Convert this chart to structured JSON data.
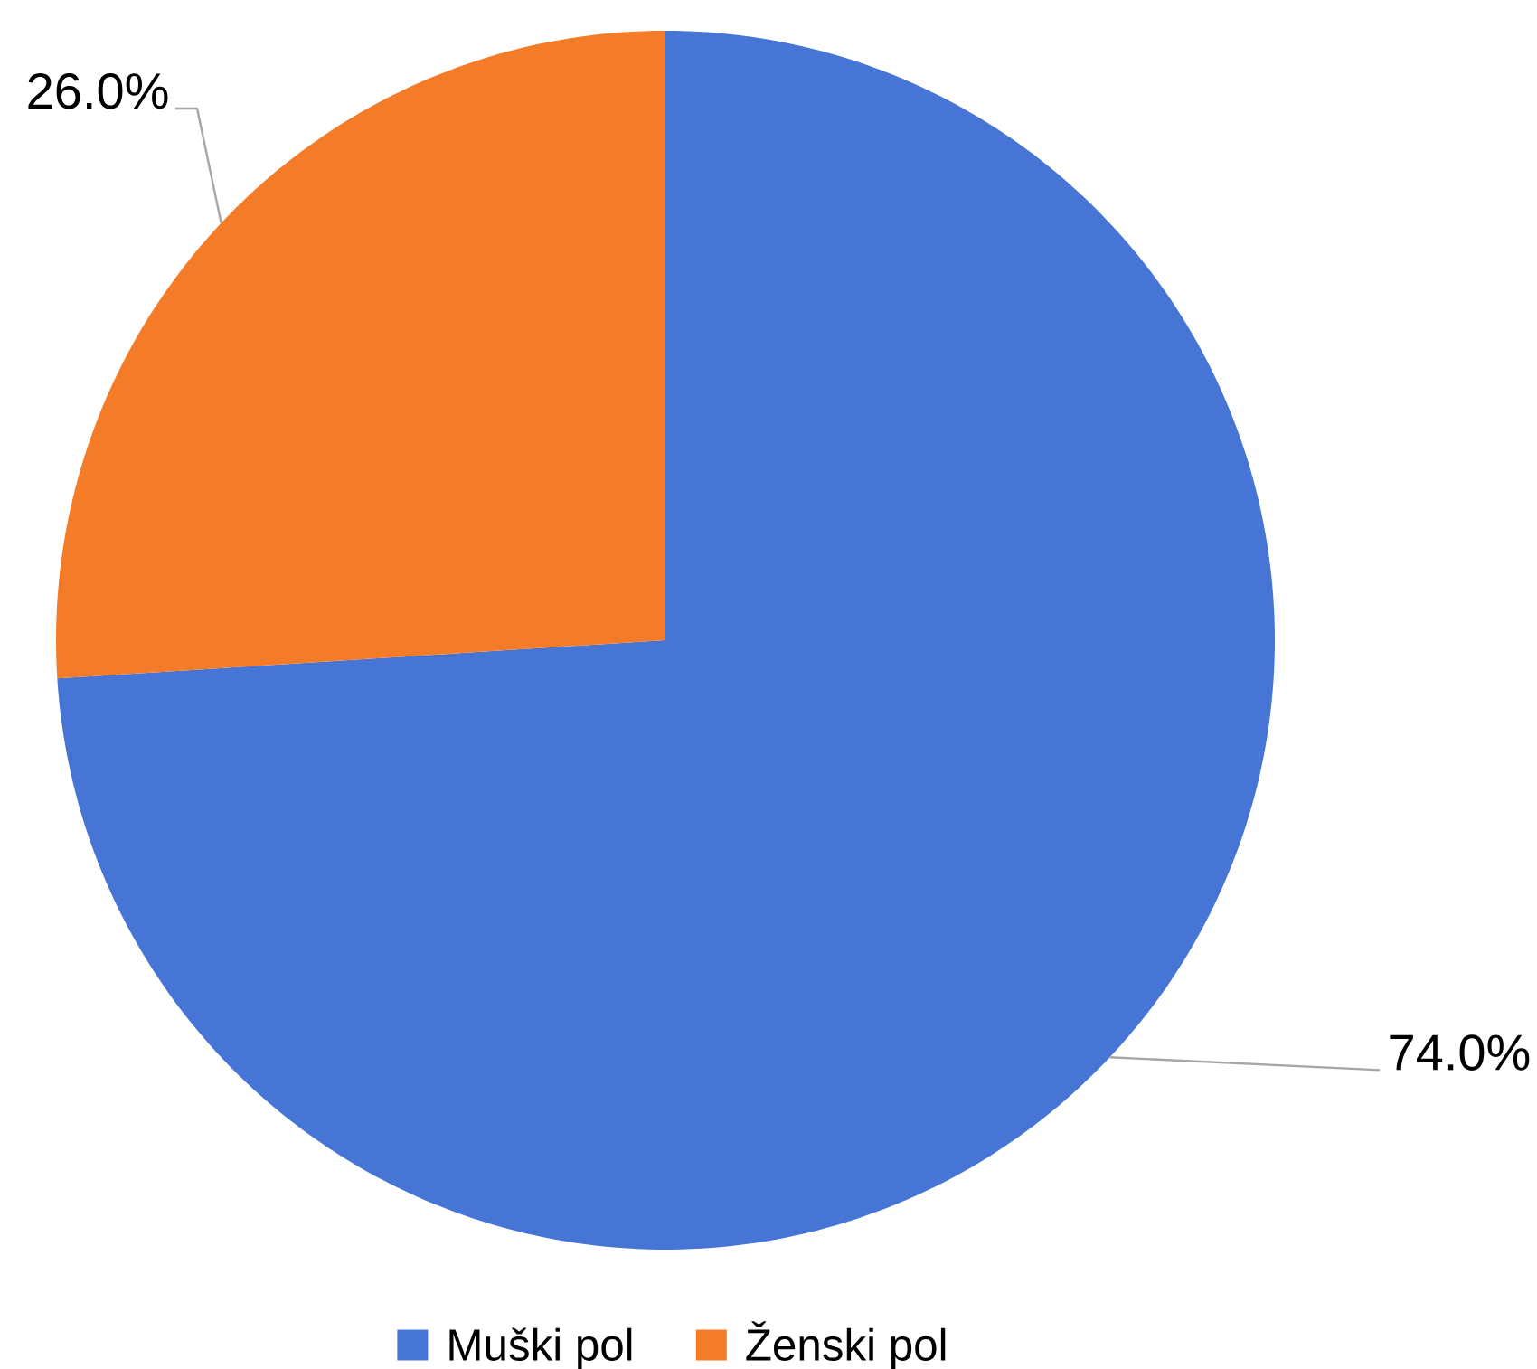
{
  "chart_data": {
    "type": "pie",
    "categories": [
      "Muški pol",
      "Ženski pol"
    ],
    "values": [
      74.0,
      26.0
    ],
    "colors": [
      "#4675d5",
      "#f47b28"
    ],
    "value_labels": [
      "74.0%",
      "26.0%"
    ],
    "legend": "bottom"
  }
}
